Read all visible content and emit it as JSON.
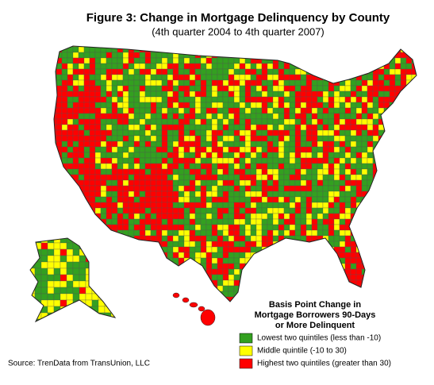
{
  "header": {
    "title": "Figure 3: Change in Mortgage Delinquency by County",
    "subtitle": "(4th quarter 2004 to 4th quarter 2007)"
  },
  "legend": {
    "title": [
      "Basis Point Change in",
      "Mortgage Borrowers 90-Days",
      "or More Delinquent"
    ],
    "items": [
      {
        "label": "Lowest two quintiles (less than -10)",
        "color": "#33a020"
      },
      {
        "label": "Middle quintile (-10 to 30)",
        "color": "#ffff00"
      },
      {
        "label": "Highest two quintiles (greater than 30)",
        "color": "#ff0000"
      }
    ]
  },
  "source": "Source:  TrenData from TransUnion, LLC"
}
